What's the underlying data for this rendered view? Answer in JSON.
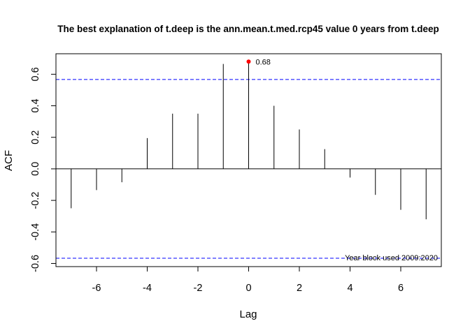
{
  "chart_data": {
    "type": "bar",
    "subtype": "acf-lollipop",
    "title": "The best explanation of t.deep is the ann.mean.t.med.rcp45 value 0 years from t.deep",
    "xlabel": "Lag",
    "ylabel": "ACF",
    "xlim": [
      -7.6,
      7.6
    ],
    "ylim": [
      -0.62,
      0.73
    ],
    "x_ticks": [
      -6,
      -4,
      -2,
      0,
      2,
      4,
      6
    ],
    "x_tick_labels": [
      "-6",
      "-4",
      "-2",
      "0",
      "2",
      "4",
      "6"
    ],
    "y_ticks": [
      -0.6,
      -0.4,
      -0.2,
      0.0,
      0.2,
      0.4,
      0.6
    ],
    "y_tick_labels": [
      "-0.6",
      "-0.4",
      "-0.2",
      "0.0",
      "0.2",
      "0.4",
      "0.6"
    ],
    "x": [
      -7,
      -6,
      -5,
      -4,
      -3,
      -2,
      -1,
      0,
      1,
      2,
      3,
      4,
      5,
      6,
      7
    ],
    "values": [
      -0.25,
      -0.135,
      -0.085,
      0.195,
      0.35,
      0.35,
      0.665,
      0.68,
      0.4,
      0.25,
      0.125,
      -0.055,
      -0.165,
      -0.26,
      -0.32
    ],
    "confidence_bounds": [
      0.567,
      -0.567
    ],
    "bound_color": "#0000FF",
    "highlight": {
      "x": 0,
      "y": 0.68,
      "label": "0.68",
      "color": "#FF0000"
    },
    "annotation": "Year block used 2009:2020",
    "grid": false,
    "legend": false
  }
}
